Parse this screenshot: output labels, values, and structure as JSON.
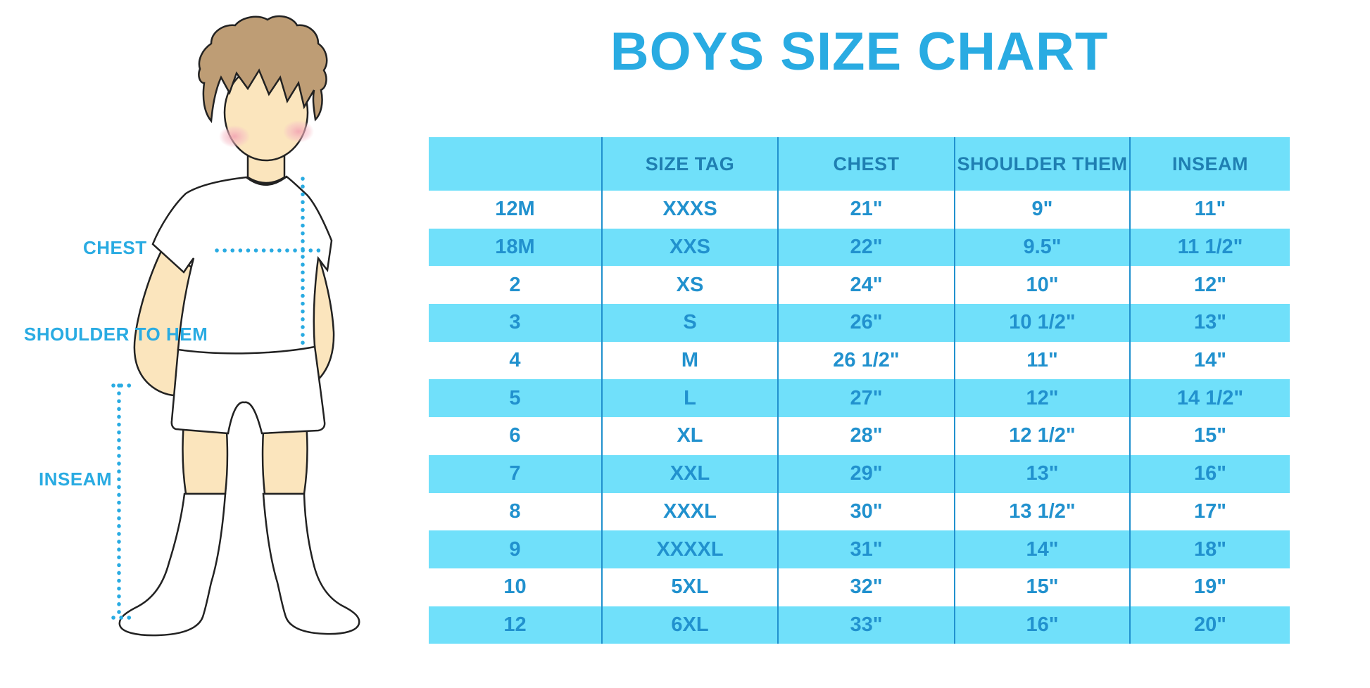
{
  "title": "BOYS SIZE CHART",
  "figure": {
    "labels": {
      "chest": "CHEST",
      "shoulder_to_hem": "SHOULDER TO HEM",
      "inseam": "INSEAM"
    }
  },
  "colors": {
    "accent_blue": "#29ABE2",
    "row_stripe": "#70E0FA",
    "cell_text": "#2191CE",
    "header_text": "#1F7FB2",
    "column_separator": "#2191CE",
    "skin": "#FBE5BD",
    "hair": "#BE9D75"
  },
  "chart_data": {
    "type": "table",
    "title": "BOYS SIZE CHART",
    "columns": [
      "",
      "SIZE TAG",
      "CHEST",
      "SHOULDER THEM",
      "INSEAM"
    ],
    "rows": [
      [
        "12M",
        "XXXS",
        "21\"",
        "9\"",
        "11\""
      ],
      [
        "18M",
        "XXS",
        "22\"",
        "9.5\"",
        "11 1/2\""
      ],
      [
        "2",
        "XS",
        "24\"",
        "10\"",
        "12\""
      ],
      [
        "3",
        "S",
        "26\"",
        "10 1/2\"",
        "13\""
      ],
      [
        "4",
        "M",
        "26 1/2\"",
        "11\"",
        "14\""
      ],
      [
        "5",
        "L",
        "27\"",
        "12\"",
        "14 1/2\""
      ],
      [
        "6",
        "XL",
        "28\"",
        "12 1/2\"",
        "15\""
      ],
      [
        "7",
        "XXL",
        "29\"",
        "13\"",
        "16\""
      ],
      [
        "8",
        "XXXL",
        "30\"",
        "13 1/2\"",
        "17\""
      ],
      [
        "9",
        "XXXXL",
        "31\"",
        "14\"",
        "18\""
      ],
      [
        "10",
        "5XL",
        "32\"",
        "15\"",
        "19\""
      ],
      [
        "12",
        "6XL",
        "33\"",
        "16\"",
        "20\""
      ]
    ],
    "layout": {
      "striped": true,
      "stripe_color": "#70E0FA",
      "grid": "vertical-only"
    }
  }
}
